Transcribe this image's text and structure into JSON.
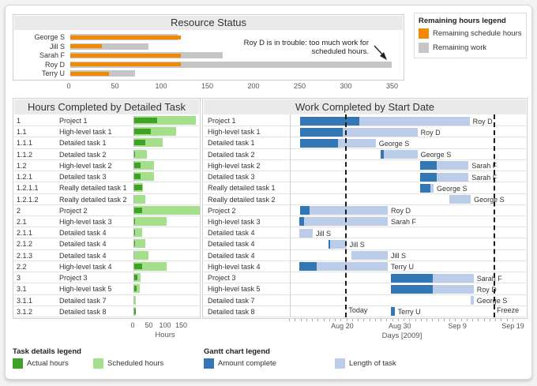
{
  "page": {
    "background": "#F3F3F3",
    "card_background": "#FFFFFF"
  },
  "colors": {
    "orange": "#F18A00",
    "gray": "#C6C6C6",
    "dark_green": "#3DA226",
    "light_green": "#A4DF8C",
    "dark_blue": "#3377B5",
    "light_blue": "#BCCDE9",
    "panel_header": "#EAEAEA",
    "panel_border": "#CFCFCF",
    "row_line": "#E2E2E2"
  },
  "legends": {
    "remaining": {
      "title": "Remaining hours legend"
    },
    "task": {
      "title": "Task details legend",
      "items": [
        {
          "label": "Actual hours",
          "color": "#3DA226"
        },
        {
          "label": "Scheduled hours",
          "color": "#A4DF8C"
        }
      ]
    },
    "gantt": {
      "title": "Gantt chart legend",
      "items": [
        {
          "label": "Amount complete",
          "color": "#3377B5"
        },
        {
          "label": "Length of task",
          "color": "#BCCDE9"
        }
      ]
    }
  },
  "chart_data": [
    {
      "type": "bar",
      "orientation": "horizontal",
      "title": "Resource Status",
      "categories": [
        "George S",
        "Jill S",
        "Sarah F",
        "Roy D",
        "Terry U"
      ],
      "series": [
        {
          "name": "Remaining schedule hours",
          "color": "#F18A00",
          "values": [
            120,
            34,
            120,
            120,
            42
          ]
        },
        {
          "name": "Remaining work",
          "color": "#C6C6C6",
          "values": [
            116,
            85,
            165,
            348,
            70
          ]
        }
      ],
      "xlim": [
        0,
        370
      ],
      "xticks": [
        0,
        50,
        100,
        150,
        200,
        250,
        300,
        350
      ],
      "annotation": {
        "line1": "Roy D is in trouble: too much work for",
        "line2": "scheduled hours.",
        "points_to": "Roy D"
      }
    },
    {
      "type": "bar",
      "orientation": "horizontal",
      "title": "Hours Completed by Detailed Task",
      "xlabel": "Hours",
      "xticks": [
        0,
        50,
        100,
        150
      ],
      "xlim": [
        0,
        210
      ],
      "series_names": [
        "Actual hours",
        "Scheduled hours"
      ],
      "rows": [
        {
          "wbs": "1",
          "task": "Project 1",
          "actual": 70,
          "scheduled": 190
        },
        {
          "wbs": "1.1",
          "task": "High-level task 1",
          "actual": 50,
          "scheduled": 130
        },
        {
          "wbs": "1.1.1",
          "task": "Detailed task 1",
          "actual": 35,
          "scheduled": 88
        },
        {
          "wbs": "1.1.2",
          "task": "Detailed task 2",
          "actual": 3,
          "scheduled": 40
        },
        {
          "wbs": "1.2",
          "task": "High-level task 2",
          "actual": 20,
          "scheduled": 60
        },
        {
          "wbs": "1.2.1",
          "task": "Detailed task 3",
          "actual": 20,
          "scheduled": 60
        },
        {
          "wbs": "1.2.1.1",
          "task": "Really detailed task 1",
          "actual": 25,
          "scheduled": 28
        },
        {
          "wbs": "1.2.1.2",
          "task": "Really detailed task 2",
          "actual": 0,
          "scheduled": 35
        },
        {
          "wbs": "2",
          "task": "Project 2",
          "actual": 25,
          "scheduled": 210
        },
        {
          "wbs": "2.1",
          "task": "High-level task 3",
          "actual": 3,
          "scheduled": 100
        },
        {
          "wbs": "2.1.1",
          "task": "Detailed task 4",
          "actual": 2,
          "scheduled": 25
        },
        {
          "wbs": "2.1.2",
          "task": "Detailed task 4",
          "actual": 2,
          "scheduled": 35
        },
        {
          "wbs": "2.1.3",
          "task": "Detailed task 4",
          "actual": 0,
          "scheduled": 45
        },
        {
          "wbs": "2.2",
          "task": "High-level task 4",
          "actual": 25,
          "scheduled": 100
        },
        {
          "wbs": "3",
          "task": "Project 3",
          "actual": 10,
          "scheduled": 20
        },
        {
          "wbs": "3.1",
          "task": "High-level task 5",
          "actual": 8,
          "scheduled": 18
        },
        {
          "wbs": "3.1.1",
          "task": "Detailed task 7",
          "actual": 0,
          "scheduled": 5
        },
        {
          "wbs": "3.1.2",
          "task": "Detailed task 8",
          "actual": 5,
          "scheduled": 6
        }
      ]
    },
    {
      "type": "gantt",
      "title": "Work Completed by Start Date",
      "xlabel": "Days [2009]",
      "day_zero": "Aug 11",
      "domain_days": [
        0,
        39.6
      ],
      "xticks": [
        {
          "day": 9.3,
          "label": "Aug 20"
        },
        {
          "day": 19.35,
          "label": "Aug 30"
        },
        {
          "day": 29.4,
          "label": "Sep 9"
        },
        {
          "day": 39.1,
          "label": "Sep 19"
        }
      ],
      "today": {
        "day": 9.7,
        "label": "Today"
      },
      "freeze": {
        "day": 35.6,
        "label": "Freeze"
      },
      "series_names": [
        "Amount complete",
        "Length of task"
      ],
      "tasks": [
        {
          "task": "Project 1",
          "start": 1.8,
          "complete_through": 12.2,
          "end": 31.4,
          "resource": "Roy D"
        },
        {
          "task": "High-level task 1",
          "start": 1.8,
          "complete_through": 9.3,
          "end": 22.3,
          "resource": "Roy D"
        },
        {
          "task": "Detailed task 1",
          "start": 1.8,
          "complete_through": 8.4,
          "end": 15.0,
          "resource": "George S"
        },
        {
          "task": "Detailed task 2",
          "start": 15.8,
          "complete_through": 16.4,
          "end": 22.3,
          "resource": "George S"
        },
        {
          "task": "High-level task 2",
          "start": 22.8,
          "complete_through": 25.7,
          "end": 31.2,
          "resource": "Sarah F"
        },
        {
          "task": "Detailed task 3",
          "start": 22.8,
          "complete_through": 25.7,
          "end": 31.2,
          "resource": "Sarah F"
        },
        {
          "task": "Really detailed task 1",
          "start": 22.8,
          "complete_through": 24.6,
          "end": 25.1,
          "resource": "George S"
        },
        {
          "task": "Really detailed task 2",
          "start": 27.8,
          "complete_through": 27.8,
          "end": 31.6,
          "resource": "George S"
        },
        {
          "task": "Project 2",
          "start": 1.8,
          "complete_through": 3.4,
          "end": 17.1,
          "resource": "Roy D"
        },
        {
          "task": "High-level task 3",
          "start": 1.7,
          "complete_through": 2.5,
          "end": 17.1,
          "resource": "Sarah F"
        },
        {
          "task": "Detailed task 4",
          "start": 1.7,
          "complete_through": 1.7,
          "end": 4.0,
          "resource": "Jill S"
        },
        {
          "task": "Detailed task 4",
          "start": 6.7,
          "complete_through": 7.1,
          "end": 9.9,
          "resource": "Jill S"
        },
        {
          "task": "Detailed task 4",
          "start": 10.7,
          "complete_through": 10.7,
          "end": 17.1,
          "resource": "Jill S"
        },
        {
          "task": "High-level task 4",
          "start": 1.7,
          "complete_through": 4.7,
          "end": 17.1,
          "resource": "Terry U"
        },
        {
          "task": "Project 3",
          "start": 17.6,
          "complete_through": 24.9,
          "end": 32.1,
          "resource": "Sarah F"
        },
        {
          "task": "High-level task 5",
          "start": 17.6,
          "complete_through": 24.9,
          "end": 32.1,
          "resource": "Roy D"
        },
        {
          "task": "Detailed task 7",
          "start": 31.6,
          "complete_through": 31.6,
          "end": 32.1,
          "resource": "George S"
        },
        {
          "task": "Detailed task 8",
          "start": 17.7,
          "complete_through": 18.3,
          "end": 18.3,
          "resource": "Terry U"
        }
      ]
    }
  ]
}
